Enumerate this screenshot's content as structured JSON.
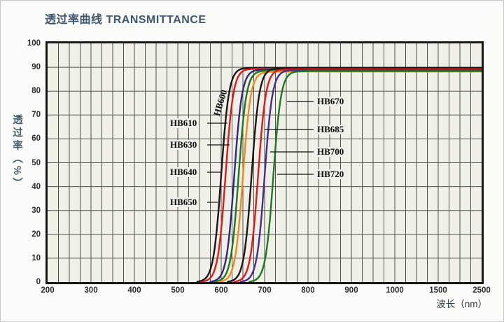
{
  "title": "透过率曲线 TRANSMITTANCE",
  "axes": {
    "y_title": "透过率（%）",
    "x_title": "波长（nm）",
    "y_ticks": [
      "100",
      "90",
      "80",
      "70",
      "60",
      "50",
      "40",
      "30",
      "20",
      "10",
      "0"
    ],
    "x_ticks": [
      "200",
      "300",
      "400",
      "500",
      "600",
      "700",
      "800",
      "900",
      "1000",
      "1500",
      "2500"
    ]
  },
  "chart_data": {
    "type": "line",
    "title": "透过率曲线 TRANSMITTANCE",
    "xlabel": "波长（nm）",
    "ylabel": "透过率（%）",
    "ylim": [
      0,
      100
    ],
    "grid": true,
    "grid_minor_x_step_nm": 25,
    "grid_y_step_pct": 10,
    "x_tick_values": [
      200,
      300,
      400,
      500,
      600,
      700,
      800,
      900,
      1000,
      1500,
      2500
    ],
    "x_scale_note": "linear 200-1000 nm at one division per 25 nm; compressed beyond 1000 (1000-1500 and 1500-2500 each occupy one major division)",
    "curve_shape": "long-pass sigmoid: T(nm) = plateau / (1 + exp(-(nm - cuton_nm)/9)), flat to 2500 nm",
    "transition_width_nm": 40,
    "series": [
      {
        "name": "HB600",
        "color": "#181818",
        "cuton_nm": 600,
        "plateau_pct": 89.8,
        "label_side": "on-curve"
      },
      {
        "name": "HB610",
        "color": "#de1a1a",
        "cuton_nm": 610,
        "plateau_pct": 89.4,
        "label_side": "left"
      },
      {
        "name": "HB630",
        "color": "#32277d",
        "cuton_nm": 630,
        "plateau_pct": 89.0,
        "label_side": "left"
      },
      {
        "name": "HB640",
        "color": "#1b7a1f",
        "cuton_nm": 640,
        "plateau_pct": 88.6,
        "label_side": "left"
      },
      {
        "name": "HB650",
        "color": "#f28a16",
        "cuton_nm": 650,
        "plateau_pct": 88.2,
        "label_side": "left"
      },
      {
        "name": "HB670",
        "color": "#181818",
        "cuton_nm": 670,
        "plateau_pct": 89.6,
        "label_side": "right"
      },
      {
        "name": "HB685",
        "color": "#de1a1a",
        "cuton_nm": 685,
        "plateau_pct": 89.2,
        "label_side": "right"
      },
      {
        "name": "HB700",
        "color": "#442d8d",
        "cuton_nm": 700,
        "plateau_pct": 88.8,
        "label_side": "right"
      },
      {
        "name": "HB720",
        "color": "#1b7a1f",
        "cuton_nm": 720,
        "plateau_pct": 88.4,
        "label_side": "right"
      }
    ]
  }
}
